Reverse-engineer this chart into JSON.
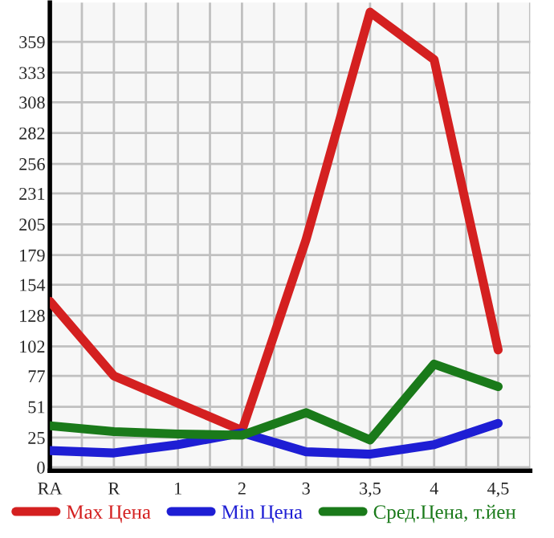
{
  "chart_data": {
    "type": "line",
    "categories": [
      "RA",
      "R",
      "1",
      "2",
      "3",
      "3,5",
      "4",
      "4,5"
    ],
    "series": [
      {
        "name": "Max Цена",
        "color": "#d42020",
        "values": [
          140,
          77,
          54,
          31,
          192,
          384,
          344,
          99
        ]
      },
      {
        "name": "Min Цена",
        "color": "#1e1ed4",
        "values": [
          14,
          12,
          19,
          29,
          13,
          11,
          19,
          37
        ]
      },
      {
        "name": "Сред.Цена, т.йен",
        "color": "#1a7a1a",
        "values": [
          35,
          30,
          28,
          27,
          46,
          23,
          87,
          68
        ]
      }
    ],
    "ylim": [
      -3,
      392
    ],
    "yticks": [
      0,
      25,
      51,
      77,
      102,
      128,
      154,
      179,
      205,
      231,
      256,
      282,
      308,
      333,
      359
    ],
    "grid": true,
    "legend": "bottom",
    "marker": "none",
    "line_style": "solid"
  }
}
